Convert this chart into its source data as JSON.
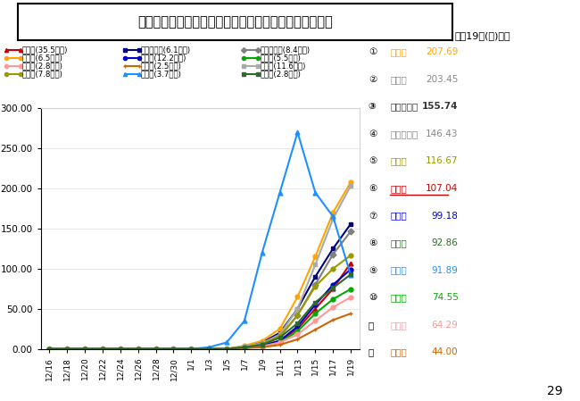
{
  "title": "県内１２市の直近１週間の１０万人当たり陽性者数推移",
  "subtitle": "１月19日(水)時点",
  "bg_color": "#ffffff",
  "plot_bg": "#ffffff",
  "x_labels": [
    "12/16",
    "12/18",
    "12/20",
    "12/22",
    "12/24",
    "12/26",
    "12/28",
    "12/30",
    "1/1",
    "1/3",
    "1/5",
    "1/7",
    "1/9",
    "1/11",
    "1/13",
    "1/15",
    "1/17",
    "1/19"
  ],
  "ylim": [
    0,
    300
  ],
  "yticks": [
    0.0,
    50.0,
    100.0,
    150.0,
    200.0,
    250.0,
    300.0
  ],
  "series": {
    "奈良市": {
      "color": "#cc0000",
      "marker": "^",
      "linestyle": "-",
      "population": "35.5万人",
      "legend_row": 0,
      "legend_col": 0,
      "data": [
        0,
        0,
        0,
        0,
        0,
        0,
        0,
        0,
        0,
        0,
        0,
        2,
        4,
        10,
        25,
        50,
        75,
        107.04
      ]
    },
    "大和高田市": {
      "color": "#000080",
      "marker": "s",
      "linestyle": "-",
      "population": "6.1万人",
      "legend_row": 0,
      "legend_col": 1,
      "data": [
        0,
        0,
        0,
        0,
        0,
        0,
        0,
        0,
        0,
        0,
        0,
        3,
        8,
        20,
        50,
        90,
        125,
        155.74
      ]
    },
    "大和郡山市": {
      "color": "#808080",
      "marker": "D",
      "linestyle": "-",
      "population": "8.4万人",
      "legend_row": 0,
      "legend_col": 2,
      "data": [
        0,
        0,
        0,
        0,
        0,
        0,
        0,
        0,
        0,
        0,
        0,
        2,
        6,
        15,
        42,
        80,
        118,
        146.43
      ]
    },
    "天理市": {
      "color": "#ffa500",
      "marker": "o",
      "linestyle": "-",
      "population": "6.5万人",
      "legend_row": 1,
      "legend_col": 0,
      "data": [
        0,
        0,
        0,
        0,
        0,
        0,
        0,
        0,
        0,
        0,
        0,
        4,
        10,
        25,
        65,
        115,
        170,
        207.69
      ]
    },
    "橿原市": {
      "color": "#0000cc",
      "marker": "o",
      "linestyle": "-",
      "population": "12.2万人",
      "legend_row": 1,
      "legend_col": 1,
      "data": [
        0,
        0,
        0,
        0,
        0,
        0,
        0,
        0,
        0,
        0,
        0,
        2,
        4,
        10,
        28,
        55,
        80,
        99.18
      ]
    },
    "桜井市": {
      "color": "#00aa00",
      "marker": "o",
      "linestyle": "-",
      "population": "5.5万人",
      "legend_row": 1,
      "legend_col": 2,
      "data": [
        0,
        0,
        0,
        0,
        0,
        0,
        0,
        0,
        0,
        0,
        0,
        1,
        3,
        8,
        22,
        44,
        62,
        74.55
      ]
    },
    "五條市": {
      "color": "#ff9999",
      "marker": "o",
      "linestyle": "-",
      "population": "2.8万人",
      "legend_row": 2,
      "legend_col": 0,
      "data": [
        0,
        0,
        0,
        0,
        0,
        0,
        0,
        0,
        0,
        0,
        0,
        1,
        3,
        8,
        18,
        35,
        52,
        64.29
      ]
    },
    "御所市": {
      "color": "#cc6600",
      "marker": "+",
      "linestyle": "-",
      "population": "2.5万人",
      "legend_row": 2,
      "legend_col": 1,
      "data": [
        0,
        0,
        0,
        0,
        0,
        0,
        0,
        0,
        0,
        0,
        0,
        1,
        2,
        5,
        12,
        24,
        36,
        44.0
      ]
    },
    "生駒市": {
      "color": "#aaaaaa",
      "marker": "s",
      "linestyle": "-",
      "population": "11.6万人",
      "legend_row": 2,
      "legend_col": 2,
      "data": [
        0,
        0,
        0,
        0,
        0,
        0,
        0,
        0,
        0,
        0,
        0,
        3,
        7,
        18,
        50,
        105,
        162,
        203.45
      ]
    },
    "香芝市": {
      "color": "#999900",
      "marker": "o",
      "linestyle": "-",
      "population": "7.8万人",
      "legend_row": 3,
      "legend_col": 0,
      "data": [
        0,
        0,
        0,
        0,
        0,
        0,
        0,
        0,
        0,
        0,
        0,
        2,
        6,
        16,
        42,
        78,
        100,
        116.67
      ]
    },
    "葛城市": {
      "color": "#1e90ff",
      "marker": "^",
      "linestyle": "-",
      "population": "3.7万人",
      "legend_row": 3,
      "legend_col": 1,
      "data": [
        0,
        0,
        0,
        0,
        0,
        0,
        0,
        0,
        0,
        2,
        8,
        35,
        120,
        195,
        270,
        195,
        165,
        91.89
      ]
    },
    "宇陀市": {
      "color": "#2d6a2d",
      "marker": "s",
      "linestyle": "-",
      "population": "2.8万人",
      "legend_row": 3,
      "legend_col": 2,
      "data": [
        0,
        0,
        0,
        0,
        0,
        0,
        0,
        0,
        0,
        0,
        0,
        2,
        5,
        14,
        32,
        58,
        76,
        92.86
      ]
    }
  },
  "ranking": [
    {
      "rank": "①",
      "city": "天理市",
      "value": "207.69",
      "color": "#ffa500",
      "bold": false,
      "underline": false
    },
    {
      "rank": "②",
      "city": "生駒市",
      "value": "203.45",
      "color": "#888888",
      "bold": false,
      "underline": false
    },
    {
      "rank": "③",
      "city": "大和高田市",
      "value": "155.74",
      "color": "#333333",
      "bold": true,
      "underline": false
    },
    {
      "rank": "④",
      "city": "大和郡山市",
      "value": "146.43",
      "color": "#888888",
      "bold": false,
      "underline": false
    },
    {
      "rank": "⑤",
      "city": "香芝市",
      "value": "116.67",
      "color": "#999900",
      "bold": false,
      "underline": false
    },
    {
      "rank": "⑥",
      "city": "奈良市",
      "value": "107.04",
      "color": "#cc0000",
      "bold": false,
      "underline": true
    },
    {
      "rank": "⑦",
      "city": "橿原市",
      "value": "99.18",
      "color": "#0000cc",
      "bold": false,
      "underline": false
    },
    {
      "rank": "⑧",
      "city": "宇陀市",
      "value": "92.86",
      "color": "#2d6a2d",
      "bold": false,
      "underline": false
    },
    {
      "rank": "⑨",
      "city": "葛城市",
      "value": "91.89",
      "color": "#1e90ff",
      "bold": false,
      "underline": false
    },
    {
      "rank": "⑩",
      "city": "桜井市",
      "value": "74.55",
      "color": "#00aa00",
      "bold": false,
      "underline": false
    },
    {
      "rank": "⑪",
      "city": "五條市",
      "value": "64.29",
      "color": "#ff9999",
      "bold": false,
      "underline": false
    },
    {
      "rank": "⑫",
      "city": "御所市",
      "value": "44.00",
      "color": "#cc6600",
      "bold": false,
      "underline": false
    }
  ],
  "page_number": "29"
}
